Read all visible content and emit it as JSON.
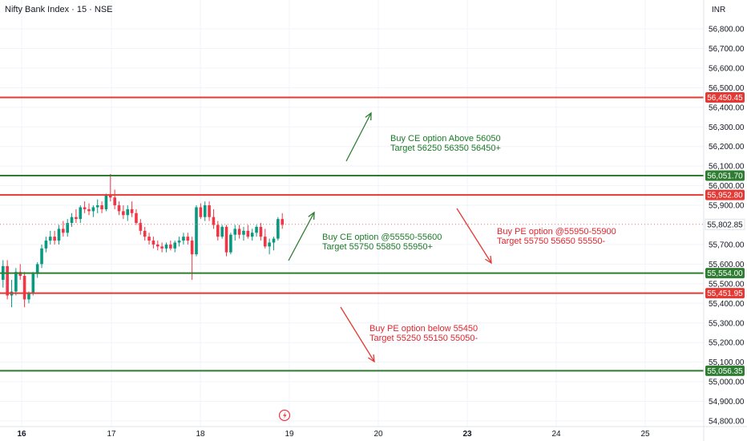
{
  "header": {
    "title": "Nifty Bank Index · 15 · NSE",
    "currency": "INR"
  },
  "colors": {
    "up": "#089981",
    "down": "#f23645",
    "green_line": "#2e7d32",
    "red_line": "#e53935",
    "current_price": "#ef6b78",
    "green_text": "#1b7a28",
    "red_text": "#e1252f"
  },
  "chart_data": {
    "type": "candlestick",
    "title": "Nifty Bank Index · 15 · NSE",
    "y_axis": {
      "ticks": [
        "56,800.00",
        "56,700.00",
        "56,600.00",
        "56,500.00",
        "56,400.00",
        "56,300.00",
        "56,200.00",
        "56,100.00",
        "56,000.00",
        "55,900.00",
        "55,700.00",
        "55,600.00",
        "55,500.00",
        "55,400.00",
        "55,300.00",
        "55,200.00",
        "55,100.00",
        "55,000.00",
        "54,900.00",
        "54,800.00"
      ],
      "ylim": [
        54780,
        56860
      ]
    },
    "x_axis": {
      "ticks": [
        {
          "label": "16",
          "bold": true
        },
        {
          "label": "17",
          "bold": false
        },
        {
          "label": "18",
          "bold": false
        },
        {
          "label": "19",
          "bold": false
        },
        {
          "label": "20",
          "bold": false
        },
        {
          "label": "23",
          "bold": true
        },
        {
          "label": "24",
          "bold": false
        },
        {
          "label": "25",
          "bold": false
        }
      ]
    },
    "horizontal_levels": [
      {
        "value": 56450.45,
        "label": "56,450.45",
        "color": "red"
      },
      {
        "value": 56051.7,
        "label": "56,051.70",
        "color": "green"
      },
      {
        "value": 55952.8,
        "label": "55,952.80",
        "color": "red"
      },
      {
        "value": 55554.0,
        "label": "55,554.00",
        "color": "green"
      },
      {
        "value": 55451.95,
        "label": "55,451.95",
        "color": "red"
      },
      {
        "value": 55056.35,
        "label": "55,056.35",
        "color": "green"
      }
    ],
    "current_price": {
      "value": 55802.85,
      "label": "55,802.85"
    },
    "candles_ohlc": [
      [
        55520,
        55620,
        55480,
        55590
      ],
      [
        55590,
        55620,
        55420,
        55440
      ],
      [
        55440,
        55520,
        55380,
        55460
      ],
      [
        55460,
        55580,
        55440,
        55560
      ],
      [
        55560,
        55600,
        55520,
        55540
      ],
      [
        55540,
        55560,
        55380,
        55420
      ],
      [
        55420,
        55460,
        55400,
        55450
      ],
      [
        55450,
        55560,
        55440,
        55550
      ],
      [
        55550,
        55610,
        55530,
        55600
      ],
      [
        55600,
        55700,
        55580,
        55680
      ],
      [
        55680,
        55740,
        55660,
        55720
      ],
      [
        55720,
        55770,
        55700,
        55740
      ],
      [
        55740,
        55770,
        55700,
        55720
      ],
      [
        55720,
        55800,
        55700,
        55780
      ],
      [
        55780,
        55820,
        55740,
        55760
      ],
      [
        55760,
        55830,
        55740,
        55810
      ],
      [
        55810,
        55860,
        55790,
        55840
      ],
      [
        55840,
        55880,
        55810,
        55830
      ],
      [
        55830,
        55900,
        55810,
        55890
      ],
      [
        55890,
        55920,
        55860,
        55880
      ],
      [
        55880,
        55910,
        55850,
        55870
      ],
      [
        55870,
        55900,
        55840,
        55890
      ],
      [
        55890,
        55930,
        55860,
        55900
      ],
      [
        55900,
        55920,
        55860,
        55880
      ],
      [
        55880,
        55960,
        55870,
        55950
      ],
      [
        55950,
        56060,
        55920,
        55940
      ],
      [
        55940,
        55980,
        55880,
        55900
      ],
      [
        55900,
        55920,
        55850,
        55870
      ],
      [
        55870,
        55900,
        55830,
        55850
      ],
      [
        55850,
        55900,
        55820,
        55880
      ],
      [
        55880,
        55920,
        55840,
        55860
      ],
      [
        55860,
        55880,
        55800,
        55810
      ],
      [
        55810,
        55830,
        55750,
        55770
      ],
      [
        55770,
        55790,
        55720,
        55740
      ],
      [
        55740,
        55760,
        55700,
        55720
      ],
      [
        55720,
        55740,
        55680,
        55700
      ],
      [
        55700,
        55720,
        55670,
        55690
      ],
      [
        55690,
        55710,
        55660,
        55680
      ],
      [
        55680,
        55710,
        55660,
        55700
      ],
      [
        55700,
        55720,
        55670,
        55680
      ],
      [
        55680,
        55720,
        55660,
        55710
      ],
      [
        55710,
        55740,
        55690,
        55720
      ],
      [
        55720,
        55760,
        55700,
        55740
      ],
      [
        55740,
        55760,
        55700,
        55720
      ],
      [
        55720,
        55740,
        55520,
        55650
      ],
      [
        55650,
        55900,
        55640,
        55890
      ],
      [
        55890,
        55910,
        55830,
        55840
      ],
      [
        55840,
        55920,
        55820,
        55900
      ],
      [
        55900,
        55920,
        55820,
        55840
      ],
      [
        55840,
        55880,
        55780,
        55800
      ],
      [
        55800,
        55820,
        55720,
        55740
      ],
      [
        55740,
        55800,
        55730,
        55790
      ],
      [
        55790,
        55800,
        55640,
        55660
      ],
      [
        55660,
        55760,
        55650,
        55750
      ],
      [
        55750,
        55800,
        55720,
        55780
      ],
      [
        55780,
        55800,
        55730,
        55750
      ],
      [
        55750,
        55790,
        55720,
        55770
      ],
      [
        55770,
        55800,
        55730,
        55740
      ],
      [
        55740,
        55780,
        55720,
        55760
      ],
      [
        55760,
        55800,
        55740,
        55790
      ],
      [
        55790,
        55810,
        55720,
        55740
      ],
      [
        55740,
        55780,
        55680,
        55690
      ],
      [
        55690,
        55730,
        55650,
        55710
      ],
      [
        55710,
        55740,
        55670,
        55730
      ],
      [
        55730,
        55840,
        55720,
        55830
      ],
      [
        55830,
        55860,
        55780,
        55800
      ]
    ],
    "annotations": [
      {
        "id": "ce_above",
        "color": "green",
        "line1": "Buy CE option Above 56050",
        "line2": "Target 56250 56350 56450+"
      },
      {
        "id": "ce_range",
        "color": "green",
        "line1": "Buy CE option @55550-55600",
        "line2": "Target 55750 55850 55950+"
      },
      {
        "id": "pe_range",
        "color": "red",
        "line1": "Buy PE option @55950-55900",
        "line2": "Target 55750 55650 55550-"
      },
      {
        "id": "pe_below",
        "color": "red",
        "line1": "Buy PE option below 55450",
        "line2": "Target 55250 55150 55050-"
      }
    ],
    "grid": true
  }
}
